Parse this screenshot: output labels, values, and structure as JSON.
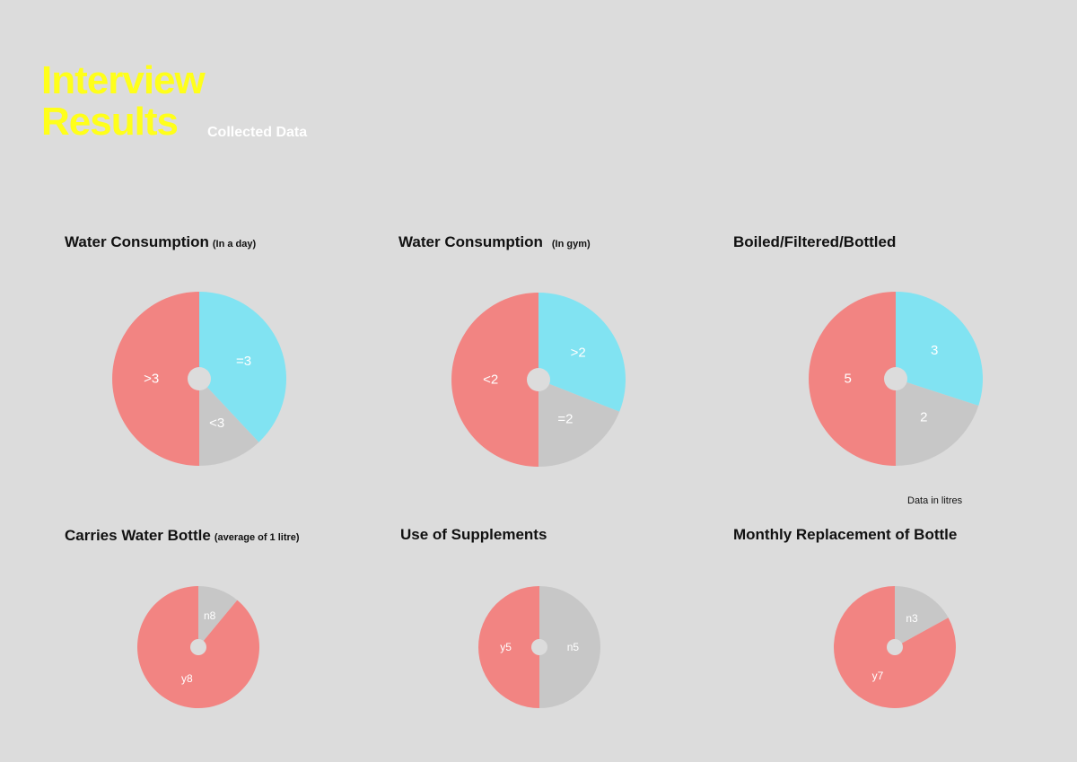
{
  "header": {
    "title_line1": "Interview",
    "title_line2": "Results",
    "subtitle": "Collected Data"
  },
  "note": "Data in litres",
  "colors": {
    "red": "#f28482",
    "cyan": "#81e3f2",
    "grey": "#c7c7c7",
    "hole": "#dcdcdc"
  },
  "chart_data": [
    {
      "type": "pie",
      "title": "Water Consumption",
      "subtitle": "(In a day)",
      "slices": [
        {
          "label": "=3",
          "value": 38,
          "color": "#81e3f2"
        },
        {
          "label": "<3",
          "value": 12,
          "color": "#c7c7c7"
        },
        {
          "label": ">3",
          "value": 50,
          "color": "#f28482"
        }
      ]
    },
    {
      "type": "pie",
      "title": "Water Consumption",
      "subtitle": "(In gym)",
      "slices": [
        {
          "label": ">2",
          "value": 31,
          "color": "#81e3f2"
        },
        {
          "label": "=2",
          "value": 19,
          "color": "#c7c7c7"
        },
        {
          "label": "<2",
          "value": 50,
          "color": "#f28482"
        }
      ]
    },
    {
      "type": "pie",
      "title": "Boiled/Filtered/Bottled",
      "subtitle": "",
      "slices": [
        {
          "label": "3",
          "value": 3,
          "color": "#81e3f2"
        },
        {
          "label": "2",
          "value": 2,
          "color": "#c7c7c7"
        },
        {
          "label": "5",
          "value": 5,
          "color": "#f28482"
        }
      ]
    },
    {
      "type": "pie",
      "title": "Carries Water Bottle",
      "subtitle": "(average of 1 litre)",
      "slices": [
        {
          "label": "n8",
          "value": 11,
          "color": "#c7c7c7"
        },
        {
          "label": "y8",
          "value": 89,
          "color": "#f28482"
        }
      ]
    },
    {
      "type": "pie",
      "title": "Use of Supplements",
      "subtitle": "",
      "slices": [
        {
          "label": "n5",
          "value": 5,
          "color": "#c7c7c7"
        },
        {
          "label": "y5",
          "value": 5,
          "color": "#f28482"
        }
      ]
    },
    {
      "type": "pie",
      "title": "Monthly Replacement of Bottle",
      "subtitle": "",
      "slices": [
        {
          "label": "n3",
          "value": 17,
          "color": "#c7c7c7"
        },
        {
          "label": "y7",
          "value": 83,
          "color": "#f28482"
        }
      ]
    }
  ]
}
